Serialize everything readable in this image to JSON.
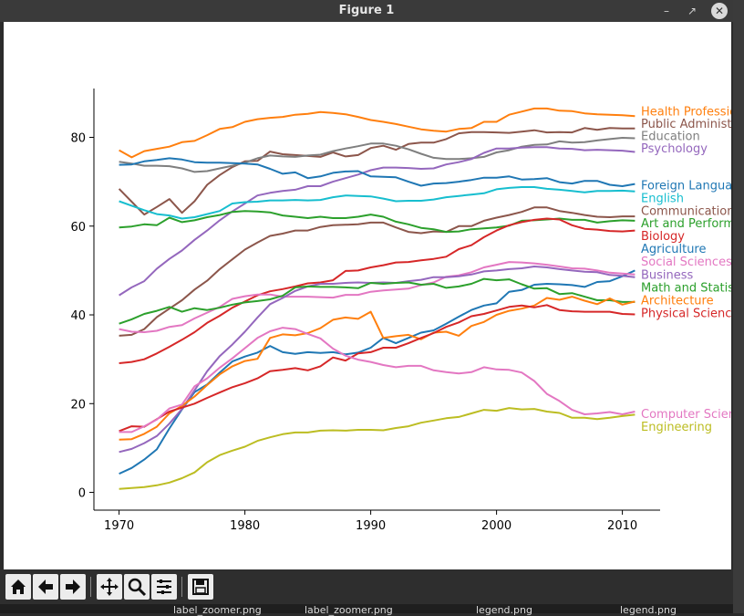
{
  "window": {
    "title": "Figure 1"
  },
  "toolbar": {
    "buttons": [
      "home-icon",
      "back-icon",
      "forward-icon",
      "pan-icon",
      "zoom-icon",
      "configure-subplots-icon",
      "save-icon"
    ]
  },
  "background": {
    "snippets": [
      "label_zoomer.png",
      "label_zoomer.png",
      "legend.png",
      "legend.png"
    ]
  },
  "chart_data": {
    "type": "line",
    "title": "",
    "xlabel": "",
    "ylabel": "",
    "xlim": [
      1968,
      2013
    ],
    "ylim": [
      -4,
      91
    ],
    "xticks": [
      1970,
      1980,
      1990,
      2000,
      2010
    ],
    "yticks": [
      0,
      20,
      40,
      60,
      80
    ],
    "grid": false,
    "legend": "end-of-line labels",
    "x": [
      1970,
      1971,
      1972,
      1973,
      1974,
      1975,
      1976,
      1977,
      1978,
      1979,
      1980,
      1981,
      1982,
      1983,
      1984,
      1985,
      1986,
      1987,
      1988,
      1989,
      1990,
      1991,
      1992,
      1993,
      1994,
      1995,
      1996,
      1997,
      1998,
      1999,
      2000,
      2001,
      2002,
      2003,
      2004,
      2005,
      2006,
      2007,
      2008,
      2009,
      2010,
      2011
    ],
    "series": [
      {
        "name": "Health Professions",
        "color": "#ff7f0e",
        "label_y": 86,
        "values": [
          77.1,
          75.5,
          76.9,
          77.4,
          77.9,
          78.9,
          79.2,
          80.5,
          81.9,
          82.3,
          83.5,
          84.1,
          84.4,
          84.6,
          85.1,
          85.3,
          85.7,
          85.5,
          85.2,
          84.6,
          83.9,
          83.5,
          83.0,
          82.4,
          81.8,
          81.5,
          81.3,
          81.9,
          82.1,
          83.5,
          83.5,
          85.1,
          85.8,
          86.5,
          86.5,
          86.0,
          85.9,
          85.4,
          85.2,
          85.1,
          85.0,
          84.8
        ]
      },
      {
        "name": "Public Administration",
        "color": "#8c564b",
        "label_y": 83.2,
        "values": [
          68.4,
          65.5,
          62.6,
          64.3,
          66.1,
          63.0,
          65.6,
          69.3,
          71.5,
          73.3,
          74.6,
          74.7,
          76.8,
          76.2,
          76.0,
          75.8,
          75.6,
          76.6,
          75.7,
          76.0,
          77.6,
          78.1,
          77.2,
          78.5,
          78.8,
          78.8,
          79.6,
          80.9,
          81.2,
          81.2,
          81.1,
          81.0,
          81.3,
          81.6,
          81.1,
          81.2,
          81.1,
          82.1,
          81.7,
          82.1,
          82.0,
          82.0
        ]
      },
      {
        "name": "Education",
        "color": "#7f7f7f",
        "label_y": 80.4,
        "values": [
          74.5,
          74.1,
          73.6,
          73.6,
          73.5,
          73.0,
          72.2,
          72.4,
          73.0,
          73.6,
          74.3,
          75.3,
          75.9,
          75.7,
          75.6,
          75.9,
          76.1,
          76.9,
          77.5,
          78.0,
          78.6,
          78.6,
          78.1,
          77.3,
          76.3,
          75.4,
          75.1,
          75.1,
          75.3,
          75.6,
          76.6,
          77.1,
          77.9,
          78.3,
          78.4,
          79.1,
          78.8,
          78.9,
          79.3,
          79.6,
          79.9,
          79.8
        ]
      },
      {
        "name": "Psychology",
        "color": "#9467bd",
        "label_y": 77.6,
        "values": [
          44.4,
          46.2,
          47.6,
          50.4,
          52.6,
          54.5,
          56.9,
          59.0,
          61.3,
          63.3,
          65.1,
          66.9,
          67.5,
          67.9,
          68.2,
          69.0,
          69.0,
          70.0,
          70.8,
          71.6,
          72.6,
          73.2,
          73.2,
          73.1,
          72.9,
          73.0,
          73.9,
          74.4,
          75.1,
          76.5,
          77.5,
          77.5,
          77.7,
          77.8,
          77.8,
          77.5,
          77.4,
          77.1,
          77.2,
          77.1,
          77.0,
          76.7
        ]
      },
      {
        "name": "Foreign Languages",
        "color": "#1f77b4",
        "label_y": 69.3,
        "values": [
          73.8,
          73.9,
          74.6,
          74.9,
          75.3,
          75.0,
          74.4,
          74.3,
          74.3,
          74.2,
          74.1,
          73.9,
          72.9,
          71.8,
          72.1,
          70.8,
          71.2,
          72.0,
          72.3,
          72.4,
          71.2,
          71.1,
          71.0,
          70.0,
          69.1,
          69.6,
          69.7,
          70.0,
          70.4,
          70.9,
          70.9,
          71.2,
          70.5,
          70.6,
          70.8,
          69.9,
          69.6,
          70.2,
          70.2,
          69.3,
          69.0,
          69.5
        ]
      },
      {
        "name": "English",
        "color": "#17becf",
        "label_y": 66.4,
        "values": [
          65.6,
          64.6,
          63.6,
          62.7,
          62.4,
          61.7,
          62.0,
          62.7,
          63.4,
          65.1,
          65.4,
          65.5,
          65.8,
          65.8,
          65.9,
          65.8,
          65.9,
          66.5,
          66.9,
          66.8,
          66.7,
          66.2,
          65.6,
          65.7,
          65.7,
          66.0,
          66.5,
          66.8,
          67.1,
          67.4,
          68.3,
          68.6,
          68.8,
          68.8,
          68.4,
          68.2,
          67.9,
          67.6,
          67.9,
          67.9,
          68.0,
          67.8
        ]
      },
      {
        "name": "Communications",
        "color": "#8c564b",
        "label_y": 63.6,
        "values": [
          35.3,
          35.5,
          36.8,
          39.5,
          41.4,
          43.3,
          45.7,
          47.7,
          50.3,
          52.5,
          54.7,
          56.3,
          57.8,
          58.3,
          59.0,
          59.0,
          59.8,
          60.2,
          60.3,
          60.4,
          60.8,
          60.8,
          59.7,
          58.7,
          58.4,
          58.8,
          58.7,
          60.0,
          60.0,
          61.2,
          61.9,
          62.5,
          63.2,
          64.2,
          64.2,
          63.4,
          63.0,
          62.5,
          62.1,
          62.0,
          62.2,
          62.2
        ]
      },
      {
        "name": "Art and Performance",
        "color": "#2ca02c",
        "label_y": 60.8,
        "values": [
          59.7,
          59.9,
          60.4,
          60.2,
          61.9,
          60.9,
          61.3,
          62.0,
          62.5,
          63.2,
          63.4,
          63.3,
          63.1,
          62.4,
          62.1,
          61.8,
          62.1,
          61.8,
          61.8,
          62.1,
          62.6,
          62.1,
          61.0,
          60.4,
          59.6,
          59.3,
          58.7,
          58.8,
          59.3,
          59.5,
          59.7,
          60.1,
          61.2,
          61.3,
          61.5,
          61.7,
          61.4,
          61.4,
          60.8,
          61.1,
          61.3,
          61.2
        ]
      },
      {
        "name": "Biology",
        "color": "#d62728",
        "label_y": 57.9,
        "values": [
          29.1,
          29.4,
          30.0,
          31.3,
          32.8,
          34.4,
          36.1,
          38.2,
          39.8,
          41.6,
          43.0,
          44.4,
          45.3,
          45.8,
          46.4,
          47.1,
          47.3,
          47.8,
          49.9,
          50.0,
          50.7,
          51.2,
          51.8,
          51.9,
          52.3,
          52.6,
          53.1,
          54.8,
          55.7,
          57.5,
          59.0,
          60.2,
          60.9,
          61.4,
          61.7,
          61.5,
          60.2,
          59.4,
          59.2,
          58.9,
          58.8,
          59.0
        ]
      },
      {
        "name": "Agriculture",
        "color": "#1f77b4",
        "label_y": 55.0,
        "values": [
          4.2,
          5.5,
          7.4,
          9.7,
          14.4,
          18.7,
          22.6,
          24.3,
          27.0,
          29.5,
          30.6,
          31.5,
          33.0,
          31.6,
          31.2,
          31.6,
          31.4,
          31.6,
          31.1,
          31.5,
          32.6,
          34.8,
          33.6,
          34.8,
          36.0,
          36.5,
          38.0,
          39.6,
          41.1,
          42.1,
          42.6,
          45.2,
          45.6,
          46.8,
          47.0,
          46.9,
          46.7,
          46.3,
          47.4,
          47.6,
          48.7,
          50.0
        ]
      },
      {
        "name": "Social Sciences and History",
        "color": "#e377c2",
        "label_y": 52.1,
        "values": [
          36.8,
          36.2,
          36.1,
          36.4,
          37.3,
          37.7,
          39.2,
          40.5,
          41.8,
          43.6,
          44.2,
          44.6,
          44.6,
          44.1,
          44.1,
          44.1,
          44.0,
          43.9,
          44.5,
          44.5,
          45.2,
          45.5,
          45.7,
          45.9,
          46.7,
          47.3,
          48.6,
          48.9,
          49.6,
          50.7,
          51.3,
          51.9,
          51.8,
          51.6,
          51.3,
          50.9,
          50.5,
          50.4,
          50.0,
          49.5,
          49.3,
          49.1
        ]
      },
      {
        "name": "Business",
        "color": "#9467bd",
        "label_y": 49.2,
        "values": [
          9.1,
          9.8,
          11.1,
          12.7,
          15.5,
          18.8,
          23.0,
          27.3,
          30.7,
          33.3,
          36.2,
          39.4,
          42.4,
          43.8,
          45.4,
          46.4,
          47.0,
          47.0,
          47.2,
          47.3,
          47.2,
          47.3,
          47.2,
          47.6,
          47.9,
          48.5,
          48.5,
          48.7,
          49.1,
          49.8,
          50.0,
          50.3,
          50.5,
          50.9,
          50.7,
          50.3,
          50.0,
          49.7,
          49.6,
          49.0,
          48.8,
          48.5
        ]
      },
      {
        "name": "Math and Statistics",
        "color": "#2ca02c",
        "label_y": 46.3,
        "values": [
          38.0,
          39.0,
          40.2,
          40.9,
          41.8,
          40.7,
          41.5,
          41.1,
          41.6,
          42.3,
          42.8,
          43.1,
          43.5,
          44.3,
          46.2,
          46.4,
          46.3,
          46.3,
          46.2,
          46.0,
          47.2,
          47.0,
          47.2,
          47.3,
          46.8,
          47.0,
          46.1,
          46.4,
          47.0,
          48.1,
          47.8,
          48.0,
          46.9,
          45.9,
          46.0,
          44.7,
          44.9,
          44.1,
          43.3,
          43.3,
          42.9,
          42.9
        ]
      },
      {
        "name": "Architecture",
        "color": "#ff7f0e",
        "label_y": 43.4,
        "values": [
          11.9,
          12.0,
          13.2,
          14.8,
          17.8,
          19.5,
          21.6,
          24.2,
          26.6,
          28.4,
          29.6,
          30.1,
          34.8,
          35.6,
          35.4,
          35.9,
          37.0,
          38.9,
          39.4,
          39.1,
          40.7,
          34.8,
          35.2,
          35.5,
          34.5,
          36.0,
          36.2,
          35.3,
          37.5,
          38.4,
          40.0,
          40.9,
          41.4,
          42.1,
          43.8,
          43.4,
          44.1,
          43.2,
          42.4,
          43.7,
          42.3,
          43.0
        ]
      },
      {
        "name": "Physical Sciences",
        "color": "#d62728",
        "label_y": 40.5,
        "values": [
          13.8,
          14.9,
          14.8,
          16.5,
          18.2,
          19.1,
          20.0,
          21.3,
          22.5,
          23.7,
          24.6,
          25.7,
          27.3,
          27.6,
          28.0,
          27.5,
          28.4,
          30.4,
          29.7,
          31.3,
          31.6,
          32.6,
          32.6,
          33.6,
          34.8,
          35.9,
          37.3,
          38.3,
          39.7,
          40.2,
          41.0,
          41.8,
          42.1,
          41.7,
          42.2,
          41.1,
          40.8,
          40.7,
          40.7,
          40.7,
          40.2,
          40.1
        ]
      },
      {
        "name": "Computer Science",
        "color": "#e377c2",
        "label_y": 17.8,
        "values": [
          13.6,
          13.6,
          14.9,
          16.4,
          18.9,
          19.8,
          23.9,
          25.7,
          28.1,
          30.2,
          32.5,
          34.8,
          36.3,
          37.1,
          36.8,
          35.7,
          34.7,
          32.4,
          30.8,
          29.9,
          29.4,
          28.7,
          28.2,
          28.5,
          28.5,
          27.5,
          27.1,
          26.8,
          27.1,
          28.2,
          27.7,
          27.6,
          27.0,
          25.1,
          22.2,
          20.6,
          18.6,
          17.6,
          17.8,
          18.1,
          17.6,
          18.2
        ]
      },
      {
        "name": "Engineering",
        "color": "#bcbd22",
        "label_y": 14.9,
        "values": [
          0.8,
          1.0,
          1.2,
          1.6,
          2.2,
          3.2,
          4.5,
          6.8,
          8.4,
          9.4,
          10.3,
          11.6,
          12.4,
          13.1,
          13.5,
          13.5,
          13.9,
          14.0,
          13.9,
          14.1,
          14.1,
          14.0,
          14.5,
          14.9,
          15.7,
          16.2,
          16.7,
          17.0,
          17.8,
          18.6,
          18.4,
          19.0,
          18.7,
          18.8,
          18.2,
          17.9,
          16.8,
          16.8,
          16.5,
          16.8,
          17.2,
          17.5
        ]
      }
    ]
  }
}
